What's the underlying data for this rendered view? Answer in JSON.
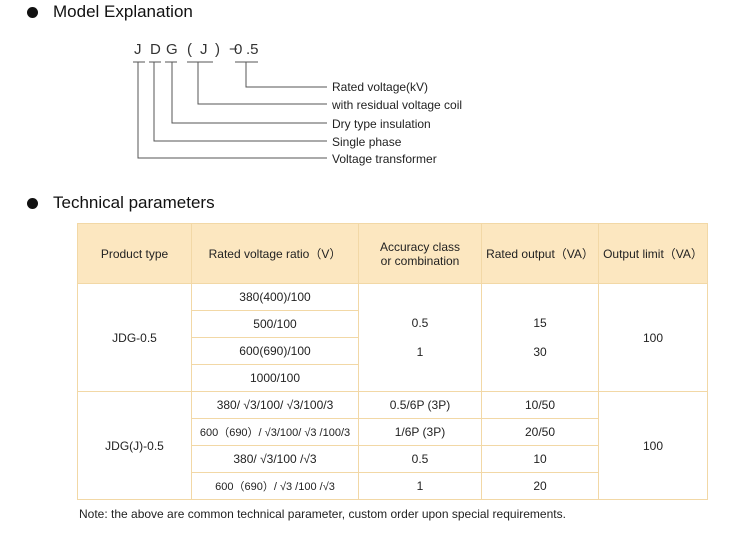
{
  "model_section": {
    "title": "Model Explanation",
    "code_chars": [
      "J",
      "D",
      "G",
      "(",
      "J",
      ")",
      "−",
      "0",
      ".5"
    ],
    "labels": [
      "Rated voltage(kV)",
      "with residual voltage coil",
      "Dry type insulation",
      "Single phase",
      "Voltage transformer"
    ]
  },
  "params_section": {
    "title": "Technical parameters",
    "headers": [
      "Product type",
      "Rated voltage ratio（V）",
      "Accuracy class or combination",
      "Rated output（VA）",
      "Output limit（VA）"
    ],
    "group1": {
      "product": "JDG-0.5",
      "ratios": [
        "380(400)/100",
        "500/100",
        "600(690)/100",
        "1000/100"
      ],
      "accuracy": [
        "0.5",
        "1"
      ],
      "output": [
        "15",
        "30"
      ],
      "limit": "100"
    },
    "group2": {
      "product": "JDG(J)-0.5",
      "rows": [
        {
          "ratio": "380/ √3/100/ √3/100/3",
          "accuracy": "0.5/6P (3P)",
          "output": "10/50"
        },
        {
          "ratio": "600（690）/ √3/100/ √3 /100/3",
          "accuracy": "1/6P (3P)",
          "output": "20/50"
        },
        {
          "ratio": "380/ √3/100 /√3",
          "accuracy": "0.5",
          "output": "10"
        },
        {
          "ratio": "600（690）/ √3 /100 /√3",
          "accuracy": "1",
          "output": "20"
        }
      ],
      "limit": "100"
    },
    "note": "Note:  the above are common technical parameter, custom order upon special requirements."
  },
  "colors": {
    "header_bg": "#fce7c0",
    "border": "#f2d8a6",
    "leader_line": "#555555"
  }
}
